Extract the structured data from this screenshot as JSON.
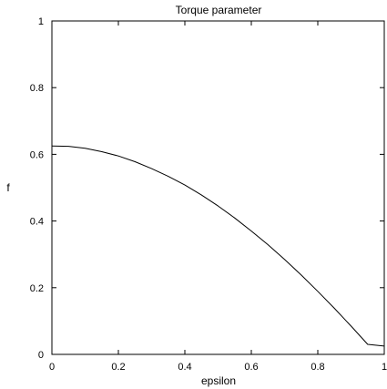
{
  "chart_data": {
    "type": "line",
    "title": "Torque parameter",
    "xlabel": "epsilon",
    "ylabel": "f",
    "xlim": [
      0,
      1
    ],
    "ylim": [
      0,
      1
    ],
    "x_ticks": [
      0,
      0.2,
      0.4,
      0.6,
      0.8,
      1
    ],
    "x_tick_labels": [
      "0",
      "0.2",
      "0.4",
      "0.6",
      "0.8",
      "1"
    ],
    "y_ticks": [
      0,
      0.2,
      0.4,
      0.6,
      0.8,
      1
    ],
    "y_tick_labels": [
      "0",
      "0.2",
      "0.4",
      "0.6",
      "0.8",
      "1"
    ],
    "grid": false,
    "legend": "none",
    "series": [
      {
        "color": "#000000",
        "x": [
          0,
          0.05,
          0.1,
          0.15,
          0.2,
          0.25,
          0.3,
          0.35,
          0.4,
          0.45,
          0.5,
          0.55,
          0.6,
          0.65,
          0.7,
          0.75,
          0.8,
          0.85,
          0.9,
          0.95,
          1
        ],
        "y": [
          0.625,
          0.624,
          0.618,
          0.608,
          0.595,
          0.578,
          0.557,
          0.534,
          0.508,
          0.478,
          0.445,
          0.409,
          0.37,
          0.329,
          0.285,
          0.238,
          0.189,
          0.138,
          0.085,
          0.03,
          0.025
        ]
      }
    ]
  }
}
